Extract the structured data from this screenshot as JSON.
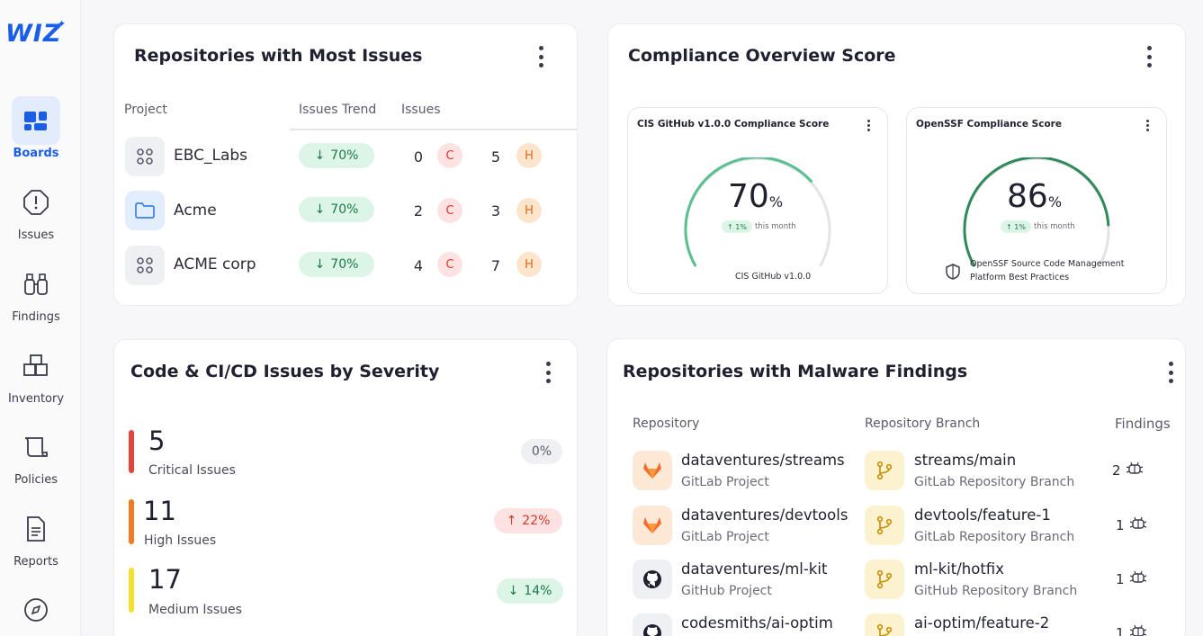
{
  "brand": {
    "name": "WIZ"
  },
  "sidebar": {
    "items": [
      {
        "label": "Boards",
        "icon": "boards-icon",
        "active": true
      },
      {
        "label": "Issues",
        "icon": "alert-octagon-icon"
      },
      {
        "label": "Findings",
        "icon": "binoculars-icon"
      },
      {
        "label": "Inventory",
        "icon": "boxes-icon"
      },
      {
        "label": "Policies",
        "icon": "scroll-icon"
      },
      {
        "label": "Reports",
        "icon": "document-icon"
      },
      {
        "label": "",
        "icon": "compass-icon"
      }
    ]
  },
  "repos_issues": {
    "title": "Repositories with Most Issues",
    "columns": {
      "project": "Project",
      "trend": "Issues Trend",
      "issues": "Issues"
    },
    "rows": [
      {
        "name": "EBC_Labs",
        "icon": "grid-icon",
        "trend": "70%",
        "critical": "0",
        "critical_label": "C",
        "high": "5",
        "high_label": "H"
      },
      {
        "name": "Acme",
        "icon": "folder-icon",
        "trend": "70%",
        "critical": "2",
        "critical_label": "C",
        "high": "3",
        "high_label": "H"
      },
      {
        "name": "ACME corp",
        "icon": "grid-icon",
        "trend": "70%",
        "critical": "4",
        "critical_label": "C",
        "high": "7",
        "high_label": "H"
      }
    ]
  },
  "compliance": {
    "title": "Compliance Overview Score",
    "cards": [
      {
        "title": "CIS GitHub v1.0.0 Compliance Score",
        "score": "70",
        "unit": "%",
        "change": "1%",
        "change_text": "this month",
        "caption": "CIS GitHub v1.0.0",
        "score_fraction": 0.7,
        "color": "#5cbf8f"
      },
      {
        "title": "OpenSSF Compliance Score",
        "score": "86",
        "unit": "%",
        "change": "1%",
        "change_text": "this month",
        "caption_line1": "OpenSSF Source Code Management",
        "caption_line2": "Platform Best Practices",
        "score_fraction": 0.86,
        "color": "#2f8a58"
      }
    ]
  },
  "severity": {
    "title": "Code & CI/CD Issues by Severity",
    "items": [
      {
        "count": "5",
        "label": "Critical Issues",
        "delta": "0%",
        "direction": "neutral",
        "color": "#e0463c"
      },
      {
        "count": "11",
        "label": "High Issues",
        "delta": "22%",
        "direction": "up",
        "color": "#f07a1f"
      },
      {
        "count": "17",
        "label": "Medium Issues",
        "delta": "14%",
        "direction": "down",
        "color": "#f5e031"
      }
    ]
  },
  "malware": {
    "title": "Repositories with Malware Findings",
    "columns": {
      "repository": "Repository",
      "branch": "Repository Branch",
      "findings": "Findings"
    },
    "rows": [
      {
        "repo": "dataventures/streams",
        "repo_type": "GitLab Project",
        "platform": "gitlab",
        "branch": "streams/main",
        "branch_type": "GitLab Repository Branch",
        "findings": "2"
      },
      {
        "repo": "dataventures/devtools",
        "repo_type": "GitLab Project",
        "platform": "gitlab",
        "branch": "devtools/feature-1",
        "branch_type": "GitLab Repository Branch",
        "findings": "1"
      },
      {
        "repo": "dataventures/ml-kit",
        "repo_type": "GitHub Project",
        "platform": "github",
        "branch": "ml-kit/hotfix",
        "branch_type": "GitHub Repository Branch",
        "findings": "1"
      },
      {
        "repo": "codesmiths/ai-optim",
        "repo_type": "",
        "platform": "github",
        "branch": "ai-optim/feature-2",
        "branch_type": "",
        "findings": "1"
      }
    ]
  }
}
